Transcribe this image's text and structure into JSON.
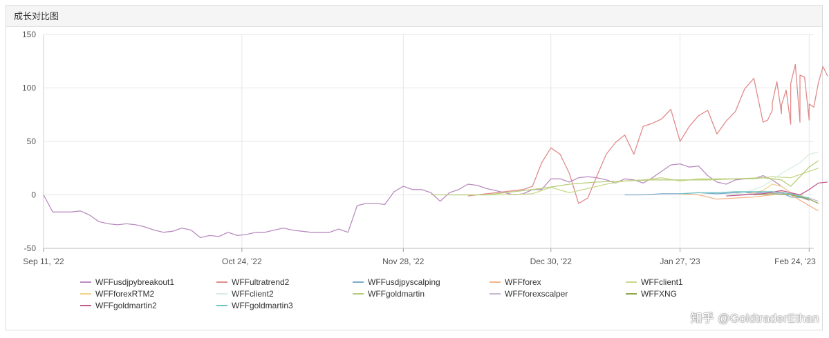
{
  "panel": {
    "title": "成长对比图"
  },
  "watermark": "知乎 @GoldtraderEthan",
  "chart_data": {
    "type": "line",
    "xlabel": "",
    "ylabel": "",
    "ylim": [
      -50,
      150
    ],
    "yticks": [
      -50,
      0,
      50,
      100,
      150
    ],
    "xlim": [
      "2022-09-11",
      "2023-02-25"
    ],
    "xticks": [
      {
        "date": "2022-09-11",
        "label": "Sep 11, '22"
      },
      {
        "date": "2022-10-24",
        "label": "Oct 24, '22"
      },
      {
        "date": "2022-11-28",
        "label": "Nov 28, '22"
      },
      {
        "date": "2022-12-30",
        "label": "Dec 30, '22"
      },
      {
        "date": "2023-01-27",
        "label": "Jan 27, '23"
      },
      {
        "date": "2023-02-24",
        "label": "Feb 24, '23"
      }
    ],
    "grid": true,
    "legend": "bottom",
    "series": [
      {
        "name": "WFFusdjpybreakout1",
        "color": "#b98bc0",
        "points": [
          [
            "2022-09-11",
            0
          ],
          [
            "2022-09-13",
            -16
          ],
          [
            "2022-09-15",
            -16
          ],
          [
            "2022-09-17",
            -16
          ],
          [
            "2022-09-19",
            -15
          ],
          [
            "2022-09-21",
            -19
          ],
          [
            "2022-09-23",
            -25
          ],
          [
            "2022-09-25",
            -27
          ],
          [
            "2022-09-27",
            -28
          ],
          [
            "2022-09-29",
            -27
          ],
          [
            "2022-10-01",
            -28
          ],
          [
            "2022-10-03",
            -30
          ],
          [
            "2022-10-05",
            -33
          ],
          [
            "2022-10-07",
            -35
          ],
          [
            "2022-10-09",
            -34
          ],
          [
            "2022-10-11",
            -31
          ],
          [
            "2022-10-13",
            -33
          ],
          [
            "2022-10-15",
            -40
          ],
          [
            "2022-10-17",
            -38
          ],
          [
            "2022-10-19",
            -39
          ],
          [
            "2022-10-21",
            -35
          ],
          [
            "2022-10-23",
            -38
          ],
          [
            "2022-10-25",
            -37
          ],
          [
            "2022-10-27",
            -35
          ],
          [
            "2022-10-29",
            -35
          ],
          [
            "2022-10-31",
            -33
          ],
          [
            "2022-11-02",
            -31
          ],
          [
            "2022-11-04",
            -33
          ],
          [
            "2022-11-06",
            -34
          ],
          [
            "2022-11-08",
            -35
          ],
          [
            "2022-11-10",
            -35
          ],
          [
            "2022-11-12",
            -35
          ],
          [
            "2022-11-14",
            -32
          ],
          [
            "2022-11-16",
            -35
          ],
          [
            "2022-11-18",
            -10
          ],
          [
            "2022-11-20",
            -8
          ],
          [
            "2022-11-22",
            -8
          ],
          [
            "2022-11-24",
            -9
          ],
          [
            "2022-11-26",
            3
          ],
          [
            "2022-11-28",
            8
          ],
          [
            "2022-11-30",
            5
          ],
          [
            "2022-12-02",
            5
          ],
          [
            "2022-12-04",
            2
          ],
          [
            "2022-12-06",
            -6
          ],
          [
            "2022-12-08",
            2
          ],
          [
            "2022-12-10",
            5
          ],
          [
            "2022-12-12",
            10
          ],
          [
            "2022-12-14",
            9
          ],
          [
            "2022-12-16",
            6
          ],
          [
            "2022-12-18",
            4
          ],
          [
            "2022-12-20",
            2
          ],
          [
            "2022-12-22",
            0
          ],
          [
            "2022-12-24",
            1
          ],
          [
            "2022-12-26",
            5
          ],
          [
            "2022-12-28",
            5
          ],
          [
            "2022-12-30",
            15
          ],
          [
            "2023-01-01",
            15
          ],
          [
            "2023-01-03",
            12
          ],
          [
            "2023-01-05",
            16
          ],
          [
            "2023-01-07",
            17
          ],
          [
            "2023-01-09",
            16
          ],
          [
            "2023-01-11",
            14
          ],
          [
            "2023-01-13",
            11
          ],
          [
            "2023-01-15",
            15
          ],
          [
            "2023-01-17",
            14
          ],
          [
            "2023-01-19",
            11
          ],
          [
            "2023-01-21",
            16
          ],
          [
            "2023-01-23",
            22
          ],
          [
            "2023-01-25",
            28
          ],
          [
            "2023-01-27",
            29
          ],
          [
            "2023-01-29",
            26
          ],
          [
            "2023-01-31",
            27
          ],
          [
            "2023-02-02",
            18
          ],
          [
            "2023-02-04",
            12
          ],
          [
            "2023-02-06",
            10
          ],
          [
            "2023-02-08",
            14
          ],
          [
            "2023-02-10",
            15
          ],
          [
            "2023-02-12",
            15
          ],
          [
            "2023-02-14",
            18
          ],
          [
            "2023-02-16",
            14
          ],
          [
            "2023-02-18",
            8
          ],
          [
            "2023-02-20",
            2
          ],
          [
            "2023-02-22",
            -2
          ],
          [
            "2023-02-24",
            -5
          ]
        ]
      },
      {
        "name": "WFFultratrend2",
        "color": "#e08a8a",
        "points": [
          [
            "2022-12-12",
            -1
          ],
          [
            "2022-12-16",
            1
          ],
          [
            "2022-12-20",
            3
          ],
          [
            "2022-12-24",
            5
          ],
          [
            "2022-12-26",
            8
          ],
          [
            "2022-12-28",
            30
          ],
          [
            "2022-12-30",
            44
          ],
          [
            "2023-01-01",
            38
          ],
          [
            "2023-01-03",
            20
          ],
          [
            "2023-01-05",
            -8
          ],
          [
            "2023-01-07",
            -3
          ],
          [
            "2023-01-09",
            18
          ],
          [
            "2023-01-11",
            38
          ],
          [
            "2023-01-13",
            49
          ],
          [
            "2023-01-15",
            56
          ],
          [
            "2023-01-17",
            38
          ],
          [
            "2023-01-19",
            64
          ],
          [
            "2023-01-21",
            67
          ],
          [
            "2023-01-23",
            71
          ],
          [
            "2023-01-25",
            80
          ],
          [
            "2023-01-27",
            50
          ],
          [
            "2023-01-29",
            64
          ],
          [
            "2023-01-31",
            74
          ],
          [
            "2023-02-02",
            79
          ],
          [
            "2023-02-04",
            57
          ],
          [
            "2023-02-06",
            69
          ],
          [
            "2023-02-08",
            78
          ],
          [
            "2023-02-10",
            99
          ],
          [
            "2023-02-12",
            109
          ],
          [
            "2023-02-14",
            68
          ],
          [
            "2023-02-16",
            79
          ],
          [
            "2023-02-18",
            76
          ],
          [
            "2023-02-20",
            66
          ],
          [
            "2023-02-22",
            68
          ],
          [
            "2023-02-24",
            70
          ],
          [
            "2023-02-15",
            70
          ],
          [
            "2023-02-16",
            86
          ],
          [
            "2023-02-17",
            106
          ],
          [
            "2023-02-18",
            84
          ],
          [
            "2023-02-19",
            98
          ],
          [
            "2023-02-20",
            104
          ],
          [
            "2023-02-21",
            122
          ],
          [
            "2023-02-22",
            112
          ],
          [
            "2023-02-23",
            110
          ],
          [
            "2023-02-24",
            85
          ],
          [
            "2023-02-25",
            82
          ],
          [
            "2023-02-26",
            105
          ],
          [
            "2023-02-27",
            120
          ],
          [
            "2023-02-28",
            111
          ]
        ]
      },
      {
        "name": "WFFusdjpyscalping",
        "color": "#7aaac9",
        "points": [
          [
            "2023-01-15",
            0
          ],
          [
            "2023-01-19",
            0
          ],
          [
            "2023-01-23",
            1
          ],
          [
            "2023-01-27",
            1
          ],
          [
            "2023-01-31",
            2
          ],
          [
            "2023-02-04",
            1
          ],
          [
            "2023-02-08",
            2
          ],
          [
            "2023-02-12",
            2
          ],
          [
            "2023-02-16",
            3
          ],
          [
            "2023-02-18",
            2
          ],
          [
            "2023-02-20",
            -2
          ],
          [
            "2023-02-24",
            -3
          ]
        ]
      },
      {
        "name": "WFFforex",
        "color": "#f2b48a",
        "points": [
          [
            "2023-01-27",
            1
          ],
          [
            "2023-01-31",
            0
          ],
          [
            "2023-02-04",
            -4
          ],
          [
            "2023-02-08",
            -3
          ],
          [
            "2023-02-12",
            -2
          ],
          [
            "2023-02-16",
            0
          ],
          [
            "2023-02-18",
            3
          ],
          [
            "2023-02-20",
            0
          ],
          [
            "2023-02-22",
            -5
          ],
          [
            "2023-02-24",
            -10
          ],
          [
            "2023-02-26",
            -15
          ]
        ]
      },
      {
        "name": "WFFclient1",
        "color": "#c8d88a",
        "points": [
          [
            "2022-12-08",
            0
          ],
          [
            "2022-12-14",
            0
          ],
          [
            "2022-12-20",
            0
          ],
          [
            "2022-12-26",
            1
          ],
          [
            "2022-12-30",
            7
          ],
          [
            "2023-01-03",
            2
          ],
          [
            "2023-01-07",
            6
          ],
          [
            "2023-01-11",
            10
          ],
          [
            "2023-01-15",
            13
          ],
          [
            "2023-01-19",
            14
          ],
          [
            "2023-01-23",
            16
          ],
          [
            "2023-01-27",
            13
          ],
          [
            "2023-01-31",
            15
          ],
          [
            "2023-02-04",
            15
          ],
          [
            "2023-02-08",
            15
          ],
          [
            "2023-02-12",
            15
          ],
          [
            "2023-02-16",
            17
          ],
          [
            "2023-02-20",
            16
          ],
          [
            "2023-02-24",
            22
          ],
          [
            "2023-02-26",
            25
          ]
        ]
      },
      {
        "name": "WFFforexRTM2",
        "color": "#f2d38a",
        "points": [
          [
            "2023-02-10",
            0
          ],
          [
            "2023-02-14",
            4
          ],
          [
            "2023-02-16",
            10
          ],
          [
            "2023-02-18",
            8
          ],
          [
            "2023-02-20",
            2
          ],
          [
            "2023-02-22",
            0
          ],
          [
            "2023-02-24",
            -4
          ]
        ]
      },
      {
        "name": "WFFclient2",
        "color": "#d7eede",
        "points": [
          [
            "2023-02-06",
            0
          ],
          [
            "2023-02-10",
            2
          ],
          [
            "2023-02-14",
            8
          ],
          [
            "2023-02-18",
            20
          ],
          [
            "2023-02-22",
            30
          ],
          [
            "2023-02-24",
            38
          ],
          [
            "2023-02-26",
            40
          ]
        ]
      },
      {
        "name": "WFFgoldmartin",
        "color": "#b6cc7a",
        "points": [
          [
            "2022-12-04",
            0
          ],
          [
            "2022-12-10",
            0
          ],
          [
            "2022-12-16",
            0
          ],
          [
            "2022-12-22",
            3
          ],
          [
            "2022-12-28",
            6
          ],
          [
            "2023-01-03",
            10
          ],
          [
            "2023-01-09",
            12
          ],
          [
            "2023-01-15",
            13
          ],
          [
            "2023-01-21",
            14
          ],
          [
            "2023-01-27",
            14
          ],
          [
            "2023-02-02",
            14
          ],
          [
            "2023-02-08",
            15
          ],
          [
            "2023-02-14",
            16
          ],
          [
            "2023-02-18",
            14
          ],
          [
            "2023-02-20",
            8
          ],
          [
            "2023-02-24",
            26
          ],
          [
            "2023-02-26",
            32
          ]
        ]
      },
      {
        "name": "WFFforexscalper",
        "color": "#c7b7d8",
        "points": [
          [
            "2023-02-08",
            0
          ],
          [
            "2023-02-12",
            1
          ],
          [
            "2023-02-16",
            2
          ],
          [
            "2023-02-20",
            0
          ],
          [
            "2023-02-24",
            -3
          ],
          [
            "2023-02-26",
            -6
          ]
        ]
      },
      {
        "name": "WFFXNG",
        "color": "#8fa84a",
        "points": [
          [
            "2023-02-12",
            0
          ],
          [
            "2023-02-16",
            1
          ],
          [
            "2023-02-20",
            0
          ],
          [
            "2023-02-24",
            -4
          ],
          [
            "2023-02-26",
            -8
          ]
        ]
      },
      {
        "name": "WFFgoldmartin2",
        "color": "#c45a8f",
        "points": [
          [
            "2023-02-06",
            -1
          ],
          [
            "2023-02-10",
            0
          ],
          [
            "2023-02-14",
            1
          ],
          [
            "2023-02-18",
            4
          ],
          [
            "2023-02-20",
            2
          ],
          [
            "2023-02-22",
            0
          ],
          [
            "2023-02-24",
            5
          ],
          [
            "2023-02-26",
            11
          ],
          [
            "2023-02-28",
            12
          ]
        ]
      },
      {
        "name": "WFFgoldmartin3",
        "color": "#6fc4c4",
        "points": [
          [
            "2023-01-27",
            1
          ],
          [
            "2023-01-31",
            2
          ],
          [
            "2023-02-04",
            2
          ],
          [
            "2023-02-08",
            3
          ],
          [
            "2023-02-12",
            3
          ],
          [
            "2023-02-16",
            3
          ],
          [
            "2023-02-20",
            1
          ],
          [
            "2023-02-24",
            -3
          ]
        ]
      }
    ]
  }
}
